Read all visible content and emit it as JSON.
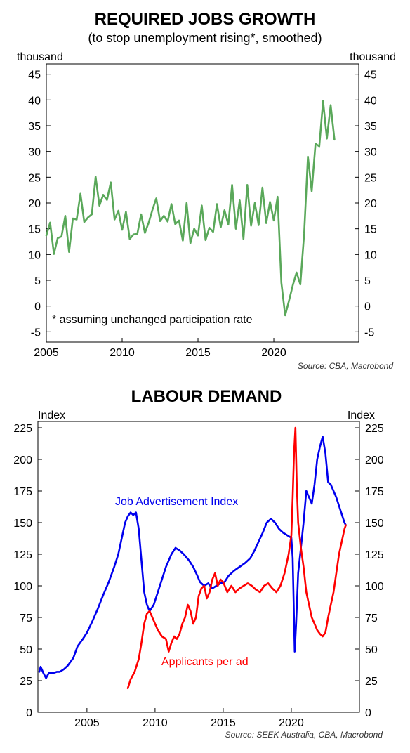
{
  "chart_data": [
    {
      "type": "line",
      "title": "REQUIRED JOBS GROWTH",
      "subtitle": "(to stop unemployment rising*, smoothed)",
      "ylabel_left": "thousand",
      "ylabel_right": "thousand",
      "ylim": [
        -7,
        47
      ],
      "yticks": [
        -5,
        0,
        5,
        10,
        15,
        20,
        25,
        30,
        35,
        40,
        45
      ],
      "xlim": [
        2005,
        2025.6
      ],
      "xticks": [
        2005,
        2010,
        2015,
        2020
      ],
      "grid": false,
      "annotation": "*  assuming unchanged participation rate",
      "source": "Source: CBA, Macrobond",
      "series": [
        {
          "color": "#5aa85a",
          "x": [
            2005.0,
            2005.25,
            2005.5,
            2005.75,
            2006.0,
            2006.25,
            2006.5,
            2006.75,
            2007.0,
            2007.25,
            2007.5,
            2007.75,
            2008.0,
            2008.25,
            2008.5,
            2008.75,
            2009.0,
            2009.25,
            2009.5,
            2009.75,
            2010.0,
            2010.25,
            2010.5,
            2010.75,
            2011.0,
            2011.25,
            2011.5,
            2011.75,
            2012.0,
            2012.25,
            2012.5,
            2012.75,
            2013.0,
            2013.25,
            2013.5,
            2013.75,
            2014.0,
            2014.25,
            2014.5,
            2014.75,
            2015.0,
            2015.25,
            2015.5,
            2015.75,
            2016.0,
            2016.25,
            2016.5,
            2016.75,
            2017.0,
            2017.25,
            2017.5,
            2017.75,
            2018.0,
            2018.25,
            2018.5,
            2018.75,
            2019.0,
            2019.25,
            2019.5,
            2019.75,
            2020.0,
            2020.25,
            2020.5,
            2020.75,
            2021.0,
            2021.25,
            2021.5,
            2021.75,
            2022.0,
            2022.25,
            2022.5,
            2022.75,
            2023.0,
            2023.25,
            2023.5,
            2023.75,
            2024.0
          ],
          "values": [
            13.7,
            16.2,
            10.1,
            13.2,
            13.5,
            17.5,
            10.5,
            17.0,
            16.8,
            21.8,
            16.3,
            17.2,
            17.8,
            25.1,
            19.5,
            21.6,
            20.6,
            24.0,
            16.8,
            18.5,
            14.8,
            18.3,
            13.0,
            13.9,
            14.0,
            17.8,
            14.2,
            16.2,
            18.7,
            20.9,
            16.5,
            17.5,
            16.4,
            19.8,
            15.9,
            16.6,
            12.7,
            20.0,
            12.2,
            15.0,
            13.7,
            19.5,
            12.8,
            15.2,
            14.4,
            19.8,
            15.3,
            18.6,
            15.8,
            23.5,
            15.0,
            20.5,
            13.0,
            23.5,
            15.6,
            20.0,
            15.7,
            23.0,
            16.1,
            20.2,
            16.6,
            21.2,
            4.5,
            -1.8,
            1.0,
            4.0,
            6.5,
            4.2,
            14.0,
            29.0,
            22.3,
            31.5,
            31.0,
            39.8,
            32.5,
            39.0,
            32.3
          ]
        }
      ]
    },
    {
      "type": "line",
      "title": "LABOUR DEMAND",
      "ylabel_left": "Index",
      "ylabel_right": "Index",
      "ylim": [
        0,
        230
      ],
      "yticks": [
        0,
        25,
        50,
        75,
        100,
        125,
        150,
        175,
        200,
        225
      ],
      "xlim": [
        2001.4,
        2025.0
      ],
      "xticks": [
        2005,
        2010,
        2015,
        2020
      ],
      "grid": false,
      "source": "Source: SEEK Australia, CBA, Macrobond",
      "series": [
        {
          "name": "Job Advertisement Index",
          "color": "#0000ee",
          "x": [
            2001.5,
            2001.6,
            2001.8,
            2002.0,
            2002.2,
            2002.5,
            2002.8,
            2003.0,
            2003.3,
            2003.6,
            2004.0,
            2004.3,
            2004.7,
            2005.0,
            2005.4,
            2005.8,
            2006.2,
            2006.6,
            2007.0,
            2007.3,
            2007.6,
            2007.8,
            2008.0,
            2008.2,
            2008.4,
            2008.6,
            2008.8,
            2009.0,
            2009.2,
            2009.4,
            2009.6,
            2009.9,
            2010.2,
            2010.5,
            2010.8,
            2011.0,
            2011.2,
            2011.5,
            2011.8,
            2012.1,
            2012.5,
            2012.8,
            2013.1,
            2013.3,
            2013.6,
            2013.9,
            2014.2,
            2014.5,
            2014.8,
            2015.1,
            2015.4,
            2015.8,
            2016.2,
            2016.6,
            2017.0,
            2017.3,
            2017.6,
            2017.9,
            2018.2,
            2018.5,
            2018.8,
            2019.1,
            2019.4,
            2019.7,
            2020.0,
            2020.1,
            2020.25,
            2020.35,
            2020.5,
            2020.7,
            2020.9,
            2021.1,
            2021.3,
            2021.5,
            2021.7,
            2021.9,
            2022.1,
            2022.3,
            2022.5,
            2022.7,
            2022.9,
            2023.1,
            2023.3,
            2023.6,
            2023.9,
            2024.0
          ],
          "values": [
            32,
            36,
            31,
            27,
            31,
            31,
            32,
            32,
            34,
            37,
            43,
            52,
            58,
            63,
            72,
            82,
            93,
            103,
            115,
            125,
            140,
            150,
            155,
            158,
            156,
            158,
            145,
            120,
            95,
            85,
            80,
            85,
            95,
            105,
            115,
            120,
            125,
            130,
            128,
            125,
            120,
            115,
            108,
            103,
            100,
            102,
            98,
            100,
            102,
            103,
            108,
            112,
            115,
            118,
            122,
            128,
            135,
            142,
            150,
            153,
            150,
            145,
            142,
            140,
            138,
            122,
            48,
            70,
            110,
            130,
            150,
            175,
            170,
            165,
            180,
            200,
            210,
            218,
            205,
            182,
            180,
            175,
            170,
            160,
            150,
            148
          ]
        },
        {
          "name": "Applicants per ad",
          "color": "#ff0000",
          "x": [
            2008.0,
            2008.2,
            2008.5,
            2008.8,
            2009.0,
            2009.2,
            2009.4,
            2009.6,
            2009.8,
            2010.0,
            2010.2,
            2010.5,
            2010.8,
            2011.0,
            2011.2,
            2011.4,
            2011.6,
            2011.8,
            2012.0,
            2012.2,
            2012.4,
            2012.6,
            2012.8,
            2013.0,
            2013.2,
            2013.4,
            2013.6,
            2013.8,
            2014.0,
            2014.2,
            2014.4,
            2014.6,
            2014.8,
            2015.0,
            2015.3,
            2015.6,
            2015.9,
            2016.2,
            2016.5,
            2016.8,
            2017.1,
            2017.4,
            2017.7,
            2018.0,
            2018.3,
            2018.6,
            2018.9,
            2019.2,
            2019.5,
            2019.8,
            2020.0,
            2020.1,
            2020.2,
            2020.3,
            2020.4,
            2020.5,
            2020.7,
            2020.9,
            2021.1,
            2021.3,
            2021.5,
            2021.7,
            2021.9,
            2022.1,
            2022.3,
            2022.5,
            2022.7,
            2022.9,
            2023.1,
            2023.3,
            2023.5,
            2023.7,
            2023.9,
            2024.0
          ],
          "values": [
            19,
            26,
            32,
            42,
            55,
            70,
            78,
            80,
            75,
            70,
            65,
            60,
            58,
            48,
            55,
            60,
            58,
            62,
            70,
            75,
            85,
            80,
            70,
            75,
            92,
            98,
            100,
            90,
            95,
            105,
            110,
            100,
            105,
            103,
            95,
            100,
            95,
            98,
            100,
            102,
            100,
            97,
            95,
            100,
            102,
            98,
            95,
            100,
            110,
            125,
            140,
            170,
            205,
            225,
            180,
            150,
            130,
            115,
            95,
            85,
            75,
            70,
            65,
            62,
            60,
            63,
            75,
            85,
            95,
            110,
            125,
            135,
            145,
            148
          ]
        }
      ]
    }
  ]
}
